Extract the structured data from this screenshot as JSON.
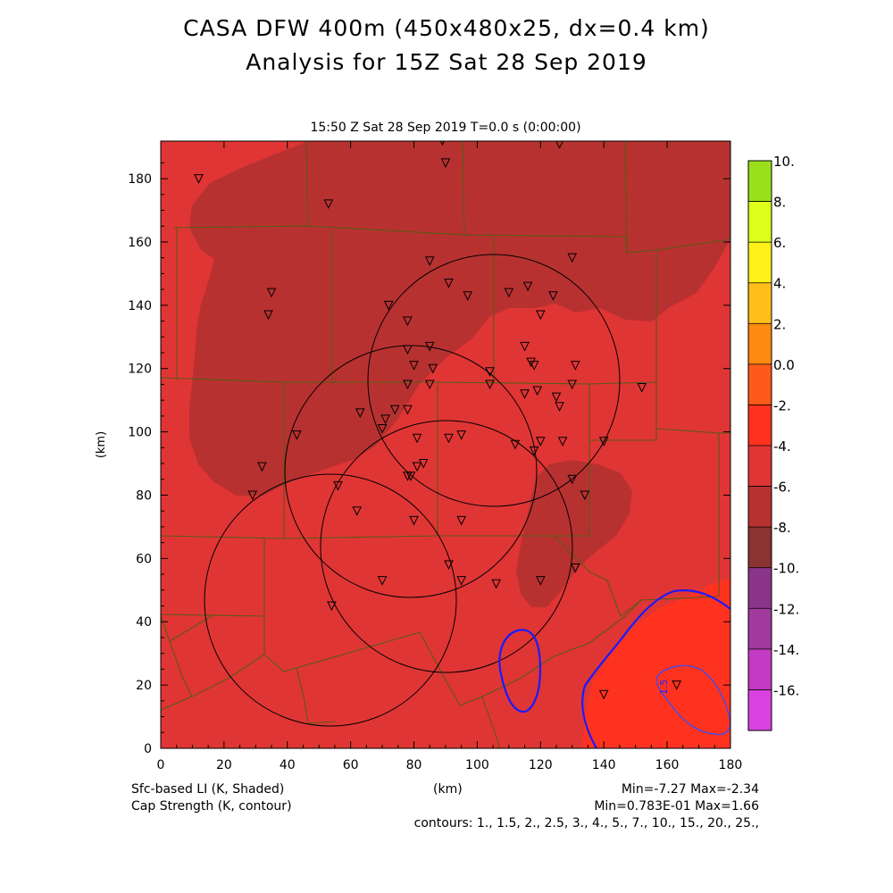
{
  "title_line1": "CASA DFW 400m (450x480x25, dx=0.4 km)",
  "title_line2": "Analysis for 15Z Sat 28 Sep 2019",
  "subtitle": "15:50 Z Sat 28 Sep 2019    T=0.0 s (0:00:00)",
  "x_axis": {
    "label": "(km)",
    "ticks": [
      "0",
      "20",
      "40",
      "60",
      "80",
      "100",
      "120",
      "140",
      "160",
      "180"
    ]
  },
  "y_axis": {
    "label": "(km)",
    "ticks": [
      "0",
      "20",
      "40",
      "60",
      "80",
      "100",
      "120",
      "140",
      "160",
      "180"
    ]
  },
  "colorbar": {
    "labels": [
      "10.",
      "8.",
      "6.",
      "4.",
      "2.",
      "0.0",
      "-2.",
      "-4.",
      "-6.",
      "-8.",
      "-10.",
      "-12.",
      "-14.",
      "-16."
    ],
    "colors": [
      "#d942e0",
      "#c33bc2",
      "#a03a9e",
      "#8a358a",
      "#8b3232",
      "#b83131",
      "#e03535",
      "#ff3220",
      "#ff5a1a",
      "#ff8a10",
      "#ffbf1a",
      "#fff01a",
      "#ddff1a",
      "#99e01a"
    ]
  },
  "footer": {
    "left1": "Sfc-based LI (K, Shaded)",
    "left2": "Cap Strength (K, contour)",
    "center": "(km)",
    "right1": "Min=-7.27 Max=-2.34",
    "right2": "Min=0.783E-01 Max=1.66",
    "contours": "contours: 1., 1.5, 2., 2.5, 3., 4., 5., 7., 10., 15., 20., 25.,"
  },
  "contour_label": "1.5",
  "radar_circles": [
    {
      "cx": 106,
      "cy": 116,
      "r": 39
    },
    {
      "cx": 78,
      "cy": 88,
      "r": 39
    },
    {
      "cx": 95,
      "cy": 63,
      "r": 39
    },
    {
      "cx": 53,
      "cy": 49,
      "r": 39
    }
  ],
  "stations": [
    [
      12,
      180
    ],
    [
      53,
      172
    ],
    [
      89,
      192
    ],
    [
      90,
      185
    ],
    [
      126,
      191
    ],
    [
      35,
      144
    ],
    [
      34,
      137
    ],
    [
      130,
      155
    ],
    [
      85,
      154
    ],
    [
      91,
      147
    ],
    [
      97,
      143
    ],
    [
      110,
      144
    ],
    [
      116,
      146
    ],
    [
      124,
      143
    ],
    [
      72,
      140
    ],
    [
      78,
      135
    ],
    [
      120,
      137
    ],
    [
      78,
      126
    ],
    [
      85,
      127
    ],
    [
      115,
      127
    ],
    [
      80,
      121
    ],
    [
      86,
      120
    ],
    [
      117,
      122
    ],
    [
      118,
      121
    ],
    [
      131,
      121
    ],
    [
      104,
      119
    ],
    [
      78,
      115
    ],
    [
      85,
      115
    ],
    [
      130,
      115
    ],
    [
      104,
      115
    ],
    [
      115,
      112
    ],
    [
      119,
      113
    ],
    [
      125,
      111
    ],
    [
      126,
      108
    ],
    [
      152,
      114
    ],
    [
      63,
      106
    ],
    [
      74,
      107
    ],
    [
      71,
      104
    ],
    [
      78,
      107
    ],
    [
      70,
      101
    ],
    [
      43,
      99
    ],
    [
      81,
      98
    ],
    [
      91,
      98
    ],
    [
      95,
      99
    ],
    [
      112,
      96
    ],
    [
      120,
      97
    ],
    [
      127,
      97
    ],
    [
      118,
      94
    ],
    [
      140,
      97
    ],
    [
      32,
      89
    ],
    [
      81,
      89
    ],
    [
      83,
      90
    ],
    [
      79,
      86
    ],
    [
      78,
      86
    ],
    [
      130,
      85
    ],
    [
      29,
      80
    ],
    [
      56,
      83
    ],
    [
      134,
      80
    ],
    [
      62,
      75
    ],
    [
      80,
      72
    ],
    [
      95,
      72
    ],
    [
      91,
      58
    ],
    [
      131,
      57
    ],
    [
      70,
      53
    ],
    [
      95,
      53
    ],
    [
      106,
      52
    ],
    [
      120,
      53
    ],
    [
      54,
      45
    ],
    [
      140,
      17
    ],
    [
      163,
      20
    ]
  ]
}
